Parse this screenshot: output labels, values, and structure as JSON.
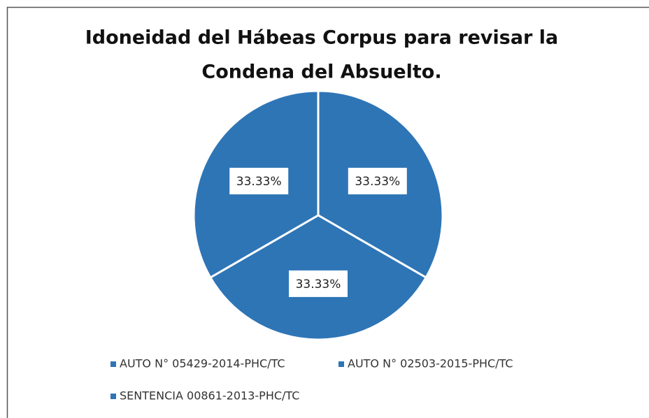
{
  "chart_data": {
    "type": "pie",
    "title": [
      "Idoneidad del Hábeas Corpus para revisar la",
      "Condena del Absuelto."
    ],
    "categories": [
      "AUTO N° 05429-2014-PHC/TC",
      "AUTO N° 02503-2015-PHC/TC",
      "SENTENCIA 00861-2013-PHC/TC"
    ],
    "values": [
      33.33,
      33.33,
      33.33
    ],
    "value_labels": [
      "33.33%",
      "33.33%",
      "33.33%"
    ],
    "color": "#2e75b6"
  }
}
